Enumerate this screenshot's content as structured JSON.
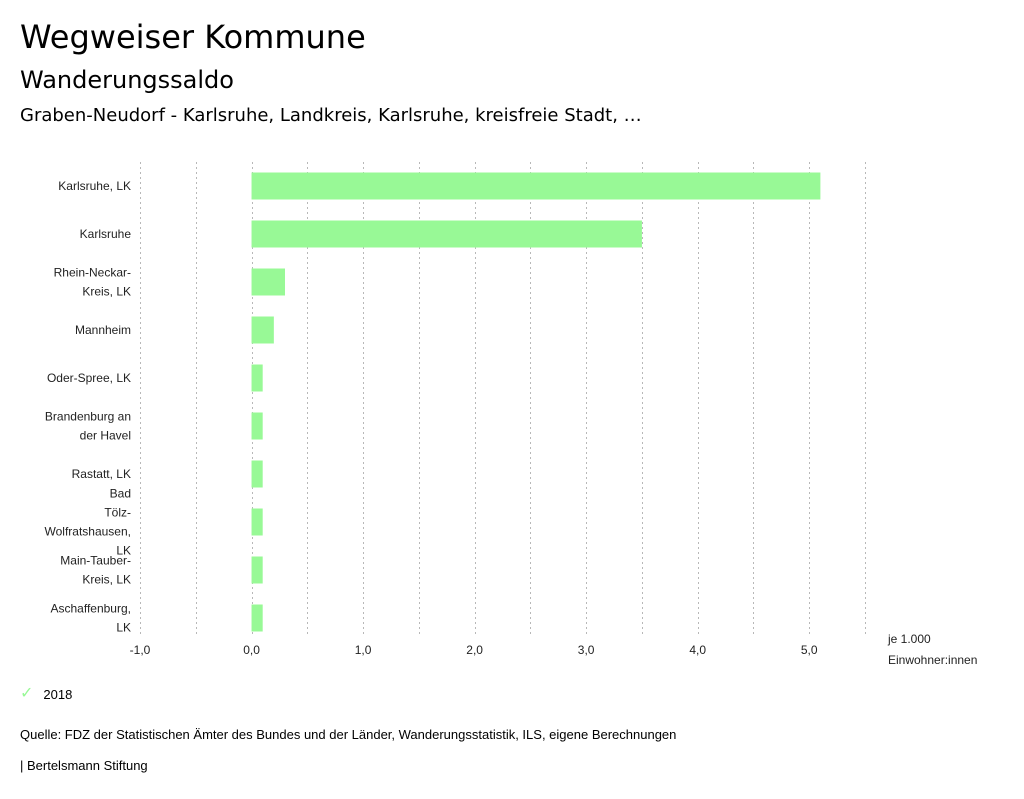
{
  "header": {
    "title": "Wegweiser Kommune",
    "subtitle": "Wanderungssaldo",
    "regions": "Graben-Neudorf - Karlsruhe, Landkreis, Karlsruhe, kreisfreie Stadt, …"
  },
  "chart_data": {
    "type": "bar",
    "orientation": "horizontal",
    "categories": [
      "Karlsruhe, LK",
      "Karlsruhe",
      "Rhein-Neckar-Kreis, LK",
      "Mannheim",
      "Oder-Spree, LK",
      "Brandenburg an der Havel",
      "Rastatt, LK",
      "Bad Tölz-Wolfratshausen, LK",
      "Main-Tauber-Kreis, LK",
      "Aschaffenburg, LK"
    ],
    "category_label_lines": [
      [
        "Karlsruhe, LK"
      ],
      [
        "Karlsruhe"
      ],
      [
        "Rhein-Neckar-",
        "Kreis, LK"
      ],
      [
        "Mannheim"
      ],
      [
        "Oder-Spree, LK"
      ],
      [
        "Brandenburg an",
        "der Havel"
      ],
      [
        "Rastatt, LK"
      ],
      [
        "Bad",
        "Tölz-",
        "Wolfratshausen,",
        "LK"
      ],
      [
        "Main-Tauber-",
        "Kreis, LK"
      ],
      [
        "Aschaffenburg,",
        "LK"
      ]
    ],
    "series": [
      {
        "name": "2018",
        "values": [
          5.1,
          3.5,
          0.3,
          0.2,
          0.1,
          0.1,
          0.1,
          0.1,
          0.1,
          0.1
        ]
      }
    ],
    "xlim": [
      -1.0,
      5.5
    ],
    "xticks": [
      -1.0,
      0.0,
      1.0,
      2.0,
      3.0,
      4.0,
      5.0
    ],
    "xtick_labels": [
      "-1,0",
      "0,0",
      "1,0",
      "2,0",
      "3,0",
      "4,0",
      "5,0"
    ],
    "xlabel_lines": [
      "je 1.000",
      "Einwohner:innen"
    ],
    "grid": true,
    "bar_color": "#98f996",
    "grid_color": "#b8b8b8"
  },
  "legend": {
    "label": "2018"
  },
  "footer": {
    "source": "Quelle: FDZ der Statistischen Ämter des Bundes und der Länder, Wanderungsstatistik, ILS, eigene Berechnungen",
    "credit": "| Bertelsmann Stiftung"
  }
}
